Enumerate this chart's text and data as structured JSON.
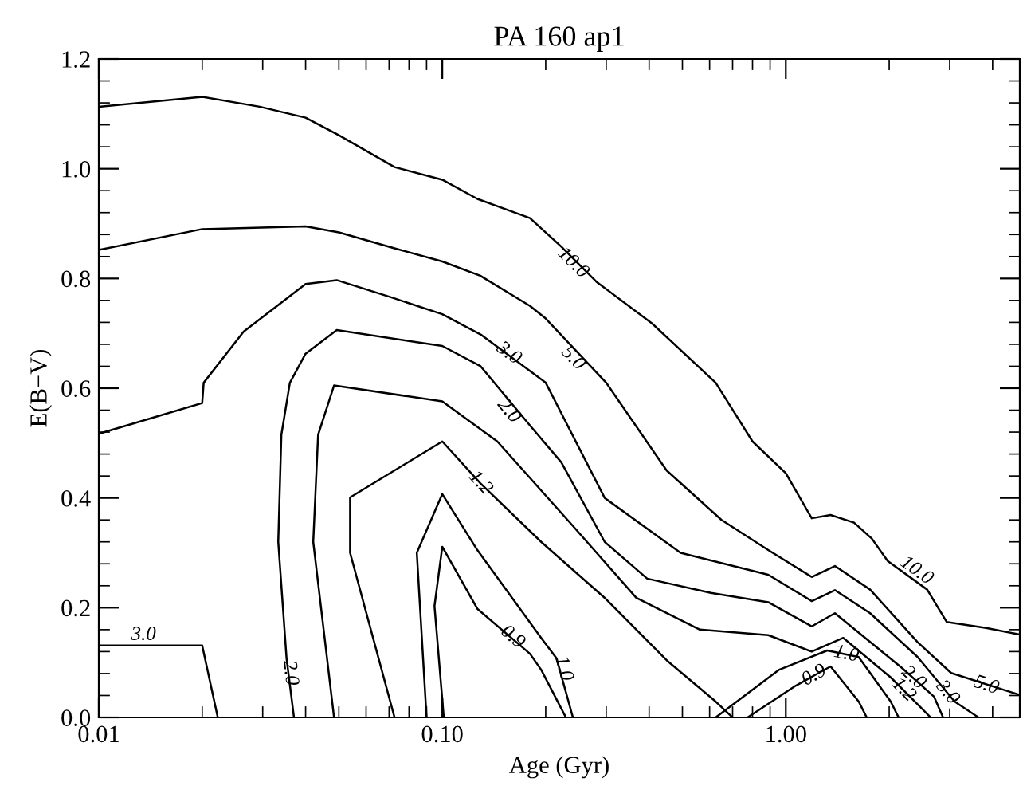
{
  "chart_data": {
    "type": "line",
    "title": "PA 160 ap1",
    "xlabel": "Age (Gyr)",
    "ylabel": "E(B−V)",
    "log": "x",
    "grid": false,
    "xlim": [
      0.01,
      4.8
    ],
    "xticks": [
      {
        "value": 0.01,
        "label": "0.01"
      },
      {
        "value": 0.1,
        "label": "0.10"
      },
      {
        "value": 1,
        "label": "1.00"
      }
    ],
    "ylim": [
      0,
      1.2
    ],
    "yticks": [
      {
        "value": 0,
        "label": "0.0"
      },
      {
        "value": 0.2,
        "label": "0.2"
      },
      {
        "value": 0.4,
        "label": "0.4"
      },
      {
        "value": 0.6,
        "label": "0.6"
      },
      {
        "value": 0.8,
        "label": "0.8"
      },
      {
        "value": 1.0,
        "label": "1.0"
      },
      {
        "value": 1.2,
        "label": "1.2"
      }
    ],
    "series": [
      {
        "color": "#000000",
        "x": [
          0.01,
          0.02,
          0.0294,
          0.04,
          0.05,
          0.0726,
          0.1,
          0.1265,
          0.18,
          0.222,
          0.281,
          0.408,
          0.625,
          0.8,
          1.0,
          1.19,
          1.35,
          1.58,
          1.78,
          1.98,
          2.58,
          2.94,
          3.83,
          4.8
        ],
        "values": [
          1.113,
          1.131,
          1.113,
          1.093,
          1.061,
          1.003,
          0.98,
          0.945,
          0.91,
          0.858,
          0.794,
          0.718,
          0.61,
          0.503,
          0.445,
          0.363,
          0.369,
          0.355,
          0.326,
          0.285,
          0.233,
          0.174,
          0.163,
          0.151
        ]
      },
      {
        "color": "#000000",
        "x": [
          0.01,
          0.02,
          0.04,
          0.05,
          0.0726,
          0.1,
          0.129,
          0.18,
          0.2,
          0.3,
          0.45,
          0.65,
          0.889,
          1.19,
          1.39,
          1.76,
          2.42,
          3.03,
          4.8
        ],
        "values": [
          0.852,
          0.89,
          0.895,
          0.884,
          0.855,
          0.831,
          0.805,
          0.75,
          0.727,
          0.61,
          0.45,
          0.36,
          0.305,
          0.256,
          0.276,
          0.233,
          0.137,
          0.081,
          0.041
        ]
      },
      {
        "color": "#000000",
        "x": [
          0.01,
          0.02,
          0.0202,
          0.0264,
          0.04,
          0.0493,
          0.0715,
          0.1,
          0.1293,
          0.2,
          0.297,
          0.494,
          0.889,
          1.19,
          1.39,
          1.76,
          2.42,
          3.1,
          3.64
        ],
        "values": [
          0.517,
          0.573,
          0.61,
          0.703,
          0.79,
          0.797,
          0.765,
          0.735,
          0.698,
          0.61,
          0.4,
          0.3,
          0.26,
          0.212,
          0.232,
          0.19,
          0.11,
          0.029,
          0.0
        ]
      },
      {
        "color": "#000000",
        "x": [
          0.01,
          0.02,
          0.0222
        ],
        "values": [
          0.131,
          0.131,
          0.0
        ]
      },
      {
        "color": "#000000",
        "x": [
          0.037,
          0.0352,
          0.0333,
          0.034,
          0.036,
          0.04,
          0.0493,
          0.1,
          0.1293,
          0.18,
          0.222,
          0.297,
          0.395,
          0.605,
          0.889,
          1.19,
          1.39,
          2.18,
          2.7,
          2.87
        ],
        "values": [
          0.0,
          0.108,
          0.32,
          0.515,
          0.61,
          0.663,
          0.706,
          0.677,
          0.64,
          0.532,
          0.465,
          0.32,
          0.253,
          0.227,
          0.21,
          0.166,
          0.19,
          0.09,
          0.038,
          0.0
        ]
      },
      {
        "color": "#000000",
        "x": [
          0.0484,
          0.0421,
          0.0435,
          0.0484,
          0.1,
          0.1446,
          0.24,
          0.367,
          0.562,
          0.889,
          1.19,
          1.47,
          2.02,
          2.5,
          2.64
        ],
        "values": [
          0.0,
          0.32,
          0.515,
          0.605,
          0.576,
          0.503,
          0.349,
          0.218,
          0.16,
          0.15,
          0.12,
          0.145,
          0.073,
          0.015,
          0.0
        ]
      },
      {
        "color": "#000000",
        "x": [
          0.0726,
          0.0539,
          0.0539,
          0.1,
          0.129,
          0.194,
          0.297,
          0.454,
          0.625,
          0.7
        ],
        "values": [
          0.0,
          0.3,
          0.401,
          0.503,
          0.427,
          0.32,
          0.218,
          0.102,
          0.029,
          0.0
        ]
      },
      {
        "color": "#000000",
        "x": [
          0.09,
          0.0843,
          0.1,
          0.1265,
          0.194,
          0.215,
          0.24
        ],
        "values": [
          0.0,
          0.3,
          0.407,
          0.305,
          0.145,
          0.108,
          0.0
        ]
      },
      {
        "color": "#000000",
        "x": [
          0.101,
          0.0949,
          0.1,
          0.1265,
          0.18,
          0.194,
          0.229
        ],
        "values": [
          0.0,
          0.203,
          0.311,
          0.198,
          0.116,
          0.087,
          0.0
        ]
      },
      {
        "color": "#000000",
        "x": [
          0.625,
          0.957,
          1.32,
          1.63,
          2.02,
          2.13
        ],
        "values": [
          0.0,
          0.087,
          0.122,
          0.11,
          0.029,
          0.0
        ]
      },
      {
        "color": "#000000",
        "x": [
          0.774,
          1.07,
          1.35,
          1.63,
          1.72
        ],
        "values": [
          0.0,
          0.058,
          0.093,
          0.029,
          0.0
        ]
      }
    ],
    "annotations": [
      {
        "text": "10.0",
        "x": 0.24,
        "y": 0.828
      },
      {
        "text": "10.0",
        "x": 2.4,
        "y": 0.267
      },
      {
        "text": "5.0",
        "x": 0.24,
        "y": 0.654
      },
      {
        "text": "5.0",
        "x": 3.83,
        "y": 0.058
      },
      {
        "text": "3.0",
        "x": 0.156,
        "y": 0.663
      },
      {
        "text": "3.0",
        "x": 0.0135,
        "y": 0.15
      },
      {
        "text": "3.0",
        "x": 2.95,
        "y": 0.045
      },
      {
        "text": "2.0",
        "x": 0.156,
        "y": 0.558
      },
      {
        "text": "2.0",
        "x": 0.036,
        "y": 0.081
      },
      {
        "text": "2.0",
        "x": 2.35,
        "y": 0.072
      },
      {
        "text": "1.2",
        "x": 0.129,
        "y": 0.427
      },
      {
        "text": "1.2",
        "x": 2.2,
        "y": 0.05
      },
      {
        "text": "1.0",
        "x": 0.225,
        "y": 0.089
      },
      {
        "text": "1.0",
        "x": 1.5,
        "y": 0.115
      },
      {
        "text": "0.9",
        "x": 0.16,
        "y": 0.146
      },
      {
        "text": "0.9",
        "x": 1.21,
        "y": 0.076
      }
    ]
  }
}
